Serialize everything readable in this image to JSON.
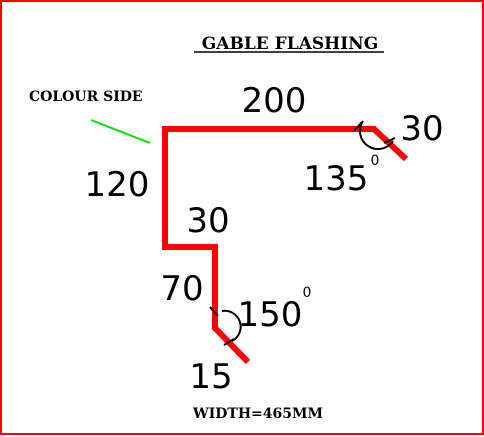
{
  "title": "GABLE FLASHING",
  "colour_side_label": "COLOUR SIDE",
  "width_label": "WIDTH=465MM",
  "dimensions": {
    "top": "200",
    "top_return": "30",
    "left_side": "120",
    "step": "30",
    "lower_side": "70",
    "bottom_return": "15"
  },
  "angles": {
    "top": {
      "value": "135",
      "unit": "0"
    },
    "bottom": {
      "value": "150",
      "unit": "0"
    }
  },
  "colors": {
    "profile": "#ff0000",
    "colour_side_marker": "#00e600",
    "border": "#ff0000",
    "text": "#000000"
  }
}
